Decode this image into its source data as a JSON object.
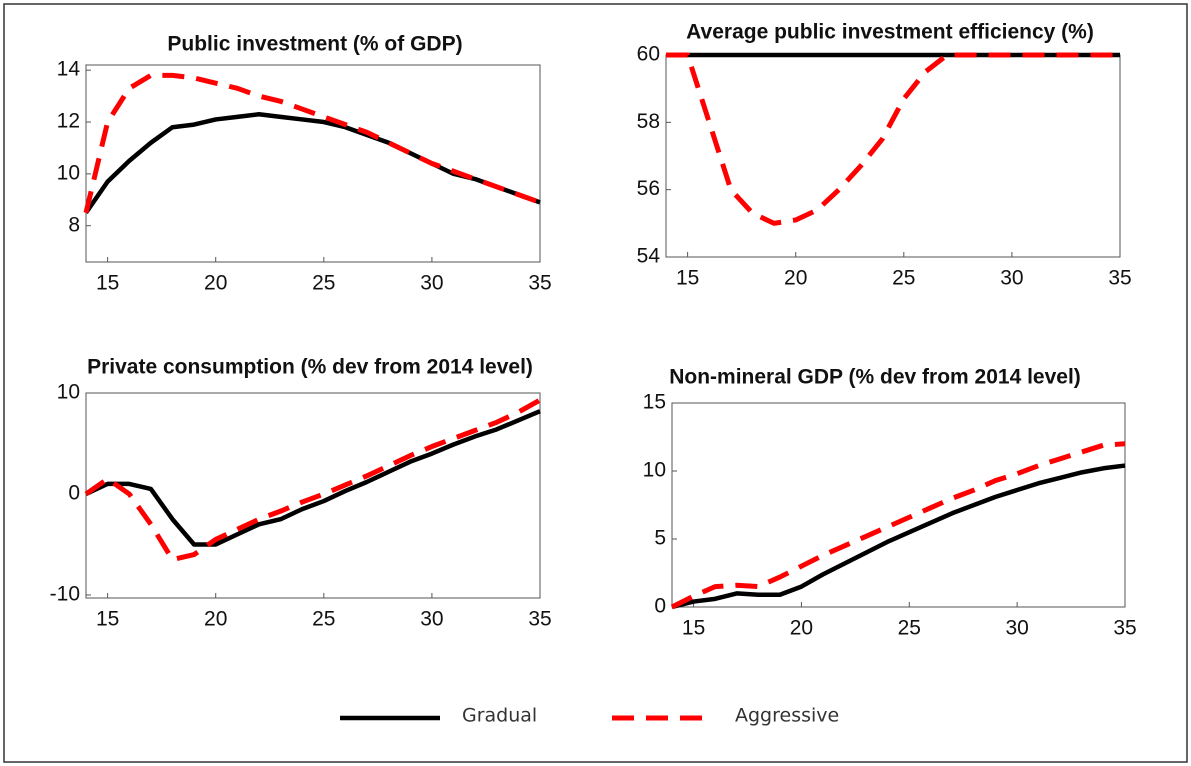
{
  "chart_data": [
    {
      "type": "line",
      "title": "Public investment (% of GDP)",
      "x": [
        14,
        15,
        16,
        17,
        18,
        19,
        20,
        21,
        22,
        23,
        24,
        25,
        26,
        27,
        28,
        29,
        30,
        31,
        32,
        33,
        34,
        35
      ],
      "series": [
        {
          "color": "#000000",
          "values": [
            8.5,
            9.7,
            10.5,
            11.2,
            11.8,
            11.9,
            12.1,
            12.2,
            12.3,
            12.2,
            12.1,
            12.0,
            11.8,
            11.5,
            11.2,
            10.8,
            10.4,
            10.0,
            9.8,
            9.5,
            9.2,
            8.9
          ]
        },
        {
          "color": "#ff0000",
          "values": [
            8.5,
            12.0,
            13.3,
            13.8,
            13.8,
            13.7,
            13.5,
            13.3,
            13.0,
            12.8,
            12.5,
            12.2,
            11.9,
            11.6,
            11.2,
            10.8,
            10.4,
            10.1,
            9.8,
            9.5,
            9.2,
            8.9
          ]
        }
      ],
      "xlim": [
        14,
        35
      ],
      "xticks": [
        15,
        20,
        25,
        30,
        35
      ],
      "ylim": [
        6.6,
        14.2
      ],
      "yticks": [
        8,
        10,
        12,
        14
      ]
    },
    {
      "type": "line",
      "title": "Average public investment efficiency (%)",
      "x": [
        14,
        15,
        16,
        17,
        18,
        19,
        20,
        21,
        22,
        23,
        24,
        25,
        26,
        27,
        28,
        29,
        30,
        31,
        32,
        33,
        34,
        35
      ],
      "series": [
        {
          "color": "#000000",
          "values": [
            60,
            60,
            60,
            60,
            60,
            60,
            60,
            60,
            60,
            60,
            60,
            60,
            60,
            60,
            60,
            60,
            60,
            60,
            60,
            60,
            60,
            60
          ]
        },
        {
          "color": "#ff0000",
          "values": [
            60,
            60,
            58,
            56,
            55.3,
            55,
            55.1,
            55.4,
            56,
            56.7,
            57.5,
            58.7,
            59.5,
            60,
            60,
            60,
            60,
            60,
            60,
            60,
            60,
            60
          ]
        }
      ],
      "xlim": [
        14,
        35
      ],
      "xticks": [
        15,
        20,
        25,
        30,
        35
      ],
      "ylim": [
        54,
        60
      ],
      "yticks": [
        54,
        56,
        58,
        60
      ]
    },
    {
      "type": "line",
      "title": "Private consumption (% dev from 2014 level)",
      "x": [
        14,
        15,
        16,
        17,
        18,
        19,
        20,
        21,
        22,
        23,
        24,
        25,
        26,
        27,
        28,
        29,
        30,
        31,
        32,
        33,
        34,
        35
      ],
      "series": [
        {
          "color": "#000000",
          "values": [
            0,
            1,
            1,
            0.5,
            -2.5,
            -5,
            -5,
            -4,
            -3,
            -2.5,
            -1.5,
            -0.7,
            0.3,
            1.2,
            2.2,
            3.2,
            4,
            4.9,
            5.7,
            6.4,
            7.3,
            8.2
          ]
        },
        {
          "color": "#ff0000",
          "values": [
            0,
            1.5,
            0,
            -3,
            -6.5,
            -6,
            -4.5,
            -3.5,
            -2.5,
            -1.7,
            -0.8,
            0,
            0.9,
            1.8,
            2.8,
            3.8,
            4.7,
            5.5,
            6.3,
            7.1,
            8.1,
            9.3
          ]
        }
      ],
      "xlim": [
        14,
        35
      ],
      "xticks": [
        15,
        20,
        25,
        30,
        35
      ],
      "ylim": [
        -10.3,
        10
      ],
      "yticks": [
        -10,
        0,
        10
      ]
    },
    {
      "type": "line",
      "title": "Non-mineral GDP (% dev from 2014 level)",
      "x": [
        14,
        15,
        16,
        17,
        18,
        19,
        20,
        21,
        22,
        23,
        24,
        25,
        26,
        27,
        28,
        29,
        30,
        31,
        32,
        33,
        34,
        35
      ],
      "series": [
        {
          "color": "#000000",
          "values": [
            0,
            0.4,
            0.6,
            1,
            0.9,
            0.9,
            1.5,
            2.4,
            3.2,
            4,
            4.8,
            5.5,
            6.2,
            6.9,
            7.5,
            8.1,
            8.6,
            9.1,
            9.5,
            9.9,
            10.2,
            10.4
          ]
        },
        {
          "color": "#ff0000",
          "values": [
            0,
            0.8,
            1.5,
            1.6,
            1.5,
            2.2,
            3,
            3.8,
            4.5,
            5.2,
            5.9,
            6.6,
            7.3,
            8,
            8.6,
            9.3,
            9.8,
            10.4,
            10.9,
            11.4,
            11.9,
            12
          ]
        }
      ],
      "xlim": [
        14,
        35
      ],
      "xticks": [
        15,
        20,
        25,
        30,
        35
      ],
      "ylim": [
        0,
        15
      ],
      "yticks": [
        0,
        5,
        10,
        15
      ]
    }
  ],
  "legend": [
    {
      "name": "Gradual",
      "color": "#000000"
    },
    {
      "name": "Aggressive",
      "color": "#ff0000"
    }
  ]
}
